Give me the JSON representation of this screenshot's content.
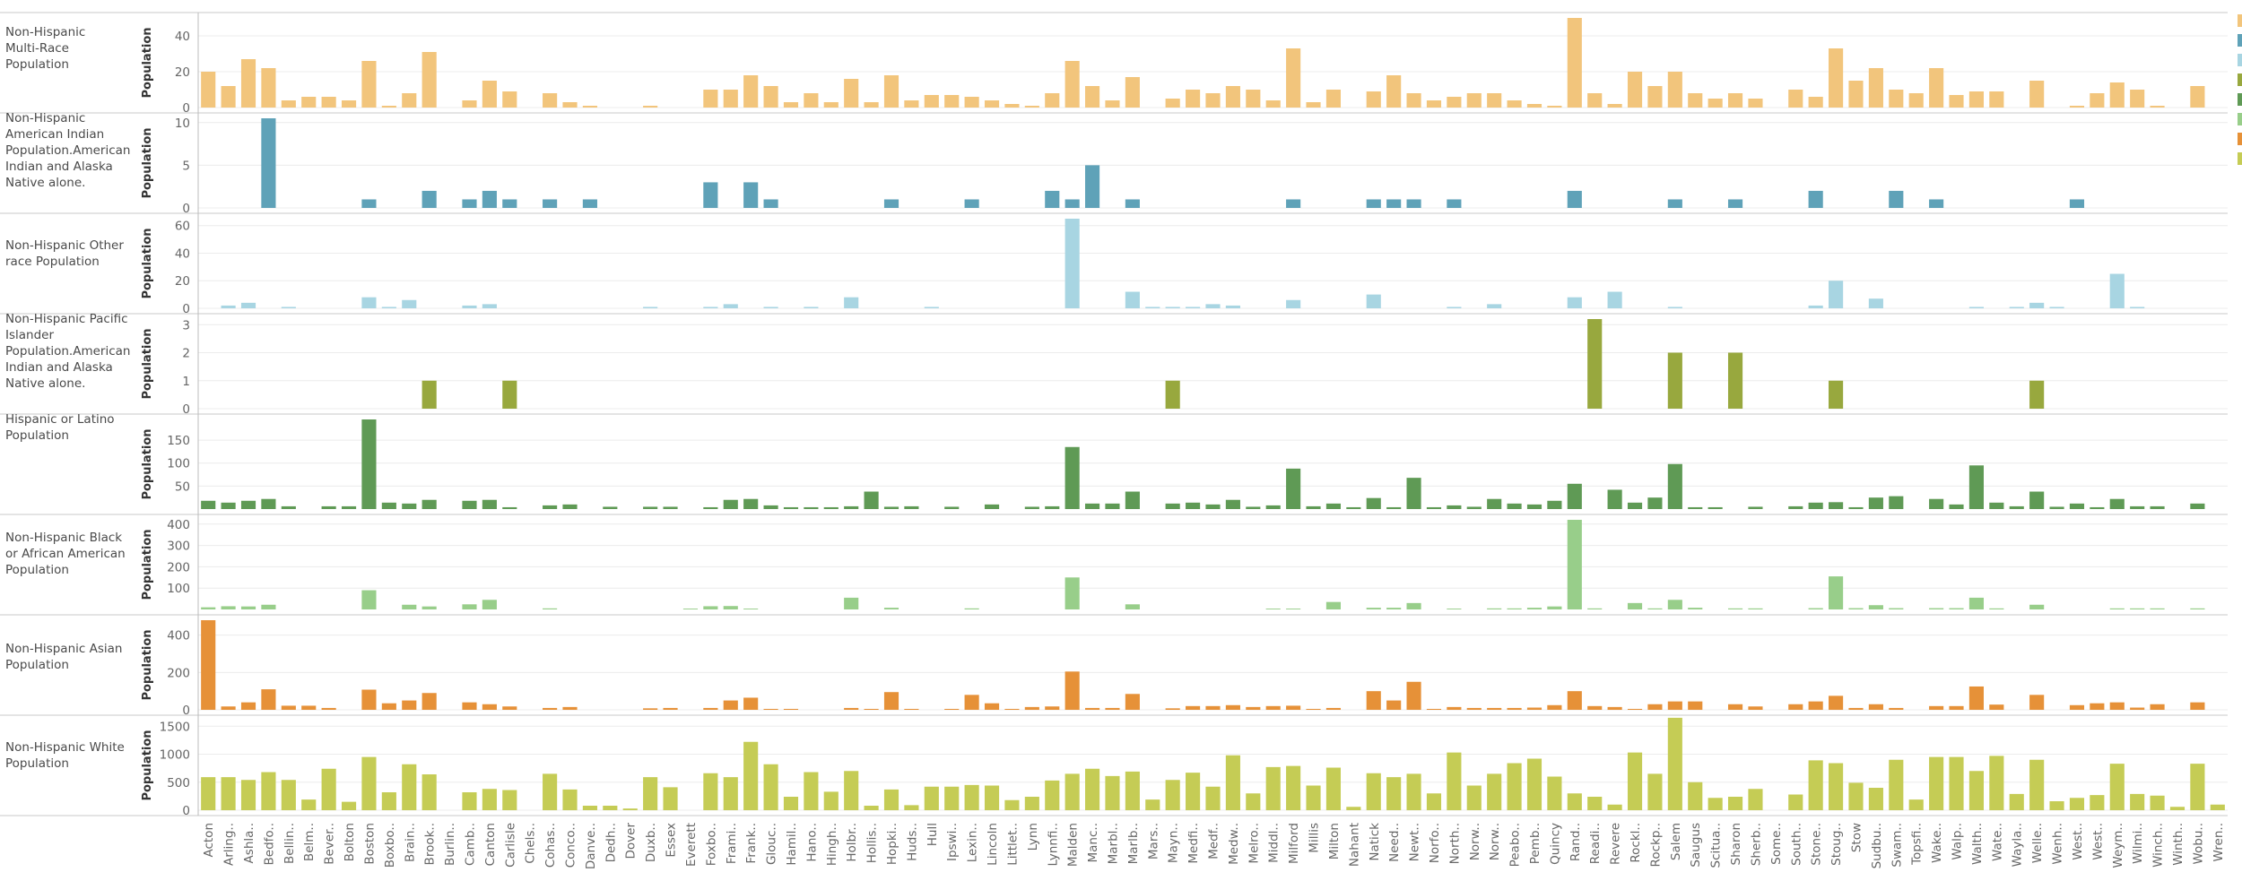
{
  "chart_data": {
    "type": "bar",
    "orientation": "vertical",
    "layout": "small-multiples",
    "y_axis_title": "Population",
    "categories": [
      "Acton",
      "Arling..",
      "Ashla..",
      "Bedfo..",
      "Bellin..",
      "Belm..",
      "Bever..",
      "Bolton",
      "Boston",
      "Boxbo..",
      "Brain..",
      "Brook..",
      "Burlin..",
      "Camb..",
      "Canton",
      "Carlisle",
      "Chels..",
      "Cohas..",
      "Conco..",
      "Danve..",
      "Dedh..",
      "Dover",
      "Duxb..",
      "Essex",
      "Everett",
      "Foxbo..",
      "Frami..",
      "Frank..",
      "Glouc..",
      "Hamil..",
      "Hano..",
      "Hingh..",
      "Holbr..",
      "Hollis..",
      "Hopki..",
      "Huds..",
      "Hull",
      "Ipswi..",
      "Lexin..",
      "Lincoln",
      "Littlet..",
      "Lynn",
      "Lynnfi..",
      "Malden",
      "Manc..",
      "Marbl..",
      "Marlb..",
      "Mars..",
      "Mayn..",
      "Medfi..",
      "Medf..",
      "Medw..",
      "Melro..",
      "Middl..",
      "Milford",
      "Millis",
      "Milton",
      "Nahant",
      "Natick",
      "Need..",
      "Newt..",
      "Norfo..",
      "North..",
      "Norw..",
      "Norw..",
      "Peabo..",
      "Pemb..",
      "Quincy",
      "Rand..",
      "Readi..",
      "Revere",
      "Rockl..",
      "Rockp..",
      "Salem",
      "Saugus",
      "Scitua..",
      "Sharon",
      "Sherb..",
      "Some..",
      "South..",
      "Stone..",
      "Stoug..",
      "Stow",
      "Sudbu..",
      "Swam..",
      "Topsfi..",
      "Wake..",
      "Walp..",
      "Walth..",
      "Wate..",
      "Wayla..",
      "Welle..",
      "Wenh..",
      "West..",
      "West..",
      "Weym..",
      "Wilmi..",
      "Winch..",
      "Winth..",
      "Wobu..",
      "Wren.."
    ],
    "series": [
      {
        "name": "Non-Hispanic Multi-Race Population",
        "color": "#f2c57c",
        "ylim": [
          0,
          50
        ],
        "ticks": [
          0,
          20,
          40
        ],
        "values": [
          20,
          12,
          27,
          22,
          4,
          6,
          6,
          4,
          26,
          1,
          8,
          31,
          0,
          4,
          15,
          9,
          0,
          8,
          3,
          1,
          0,
          0,
          1,
          0,
          0,
          10,
          10,
          18,
          12,
          3,
          8,
          3,
          16,
          3,
          18,
          4,
          7,
          7,
          6,
          4,
          2,
          1,
          8,
          26,
          12,
          4,
          17,
          0,
          5,
          10,
          8,
          12,
          10,
          4,
          33,
          3,
          10,
          0,
          9,
          18,
          8,
          4,
          6,
          8,
          8,
          4,
          2,
          1,
          50,
          8,
          2,
          20,
          12,
          20,
          8,
          5,
          8,
          5,
          0,
          10,
          6,
          33,
          15,
          22,
          10,
          8,
          22,
          7,
          9,
          9,
          0,
          15,
          0,
          1,
          8,
          14,
          10,
          1,
          0,
          12,
          0
        ]
      },
      {
        "name": "Non-Hispanic American Indian Population.American Indian and Alaska Native alone.",
        "color": "#5fa2b8",
        "ylim": [
          0,
          10.5
        ],
        "ticks": [
          0,
          5,
          10
        ],
        "values": [
          0,
          0,
          0,
          10.5,
          0,
          0,
          0,
          0,
          1,
          0,
          0,
          2,
          0,
          1,
          2,
          1,
          0,
          1,
          0,
          1,
          0,
          0,
          0,
          0,
          0,
          3,
          0,
          3,
          1,
          0,
          0,
          0,
          0,
          0,
          1,
          0,
          0,
          0,
          1,
          0,
          0,
          0,
          2,
          1,
          5,
          0,
          1,
          0,
          0,
          0,
          0,
          0,
          0,
          0,
          1,
          0,
          0,
          0,
          1,
          1,
          1,
          0,
          1,
          0,
          0,
          0,
          0,
          0,
          2,
          0,
          0,
          0,
          0,
          1,
          0,
          0,
          1,
          0,
          0,
          0,
          2,
          0,
          0,
          0,
          2,
          0,
          1,
          0,
          0,
          0,
          0,
          0,
          0,
          1,
          0,
          0,
          0,
          0,
          0,
          0,
          0
        ]
      },
      {
        "name": "Non-Hispanic Other race Population",
        "color": "#a8d5e2",
        "ylim": [
          0,
          65
        ],
        "ticks": [
          0,
          20,
          40,
          60
        ],
        "values": [
          0,
          2,
          4,
          0,
          1,
          0,
          0,
          0,
          8,
          1,
          6,
          0,
          0,
          2,
          3,
          0,
          0,
          0,
          0,
          0,
          0,
          0,
          1,
          0,
          0,
          1,
          3,
          0,
          1,
          0,
          1,
          0,
          8,
          0,
          0,
          0,
          1,
          0,
          0,
          0,
          0,
          0,
          0,
          65,
          0,
          0,
          12,
          1,
          1,
          1,
          3,
          2,
          0,
          0,
          6,
          0,
          0,
          0,
          10,
          0,
          0,
          0,
          1,
          0,
          3,
          0,
          0,
          0,
          8,
          0,
          12,
          0,
          0,
          1,
          0,
          0,
          0,
          0,
          0,
          0,
          2,
          20,
          0,
          7,
          0,
          0,
          0,
          0,
          1,
          0,
          1,
          4,
          1,
          0,
          0,
          25,
          1,
          0,
          0,
          0,
          0
        ]
      },
      {
        "name": "Non-Hispanic Pacific Islander Population.American Indian and Alaska Native alone.",
        "color": "#98a83e",
        "ylim": [
          0,
          3.2
        ],
        "ticks": [
          0,
          1,
          2,
          3
        ],
        "values": [
          0,
          0,
          0,
          0,
          0,
          0,
          0,
          0,
          0,
          0,
          0,
          1,
          0,
          0,
          0,
          1,
          0,
          0,
          0,
          0,
          0,
          0,
          0,
          0,
          0,
          0,
          0,
          0,
          0,
          0,
          0,
          0,
          0,
          0,
          0,
          0,
          0,
          0,
          0,
          0,
          0,
          0,
          0,
          0,
          0,
          0,
          0,
          0,
          1,
          0,
          0,
          0,
          0,
          0,
          0,
          0,
          0,
          0,
          0,
          0,
          0,
          0,
          0,
          0,
          0,
          0,
          0,
          0,
          0,
          3.2,
          0,
          0,
          0,
          2,
          0,
          0,
          2,
          0,
          0,
          0,
          0,
          1,
          0,
          0,
          0,
          0,
          0,
          0,
          0,
          0,
          0,
          1,
          0,
          0,
          0,
          0,
          0,
          0,
          0,
          0,
          0
        ]
      },
      {
        "name": "Hispanic or Latino Population",
        "color": "#5f9a55",
        "ylim": [
          0,
          195
        ],
        "ticks": [
          50,
          100,
          150
        ],
        "values": [
          18,
          14,
          18,
          22,
          6,
          0,
          6,
          6,
          195,
          14,
          12,
          20,
          0,
          18,
          20,
          4,
          0,
          8,
          10,
          0,
          5,
          0,
          5,
          5,
          0,
          4,
          20,
          22,
          8,
          4,
          4,
          4,
          6,
          38,
          5,
          6,
          0,
          5,
          0,
          10,
          0,
          5,
          6,
          135,
          12,
          12,
          38,
          0,
          12,
          14,
          10,
          20,
          5,
          8,
          88,
          6,
          12,
          4,
          24,
          4,
          68,
          4,
          8,
          5,
          22,
          12,
          10,
          18,
          55,
          0,
          42,
          14,
          25,
          98,
          4,
          4,
          0,
          5,
          0,
          6,
          14,
          15,
          4,
          25,
          28,
          0,
          22,
          10,
          95,
          14,
          6,
          38,
          5,
          12,
          4,
          22,
          6,
          6,
          0,
          12,
          0
        ]
      },
      {
        "name": "Non-Hispanic Black or African American Population",
        "color": "#98ce8a",
        "ylim": [
          0,
          420
        ],
        "ticks": [
          100,
          200,
          300,
          400
        ],
        "values": [
          10,
          15,
          14,
          22,
          0,
          0,
          0,
          0,
          90,
          0,
          22,
          14,
          0,
          24,
          45,
          0,
          0,
          5,
          0,
          0,
          0,
          0,
          0,
          0,
          4,
          15,
          16,
          4,
          0,
          0,
          0,
          0,
          55,
          0,
          8,
          0,
          0,
          0,
          5,
          0,
          0,
          0,
          0,
          150,
          0,
          0,
          24,
          0,
          0,
          0,
          0,
          0,
          0,
          4,
          4,
          0,
          35,
          0,
          8,
          8,
          30,
          0,
          4,
          0,
          5,
          5,
          8,
          14,
          420,
          5,
          0,
          30,
          5,
          45,
          8,
          0,
          5,
          5,
          0,
          0,
          6,
          155,
          6,
          20,
          6,
          0,
          6,
          6,
          55,
          5,
          0,
          22,
          0,
          0,
          0,
          5,
          5,
          5,
          0,
          5,
          0
        ]
      },
      {
        "name": "Non-Hispanic Asian Population",
        "color": "#e69138",
        "ylim": [
          0,
          480
        ],
        "ticks": [
          0,
          200,
          400
        ],
        "values": [
          480,
          18,
          40,
          110,
          22,
          22,
          10,
          0,
          108,
          35,
          50,
          90,
          0,
          40,
          30,
          18,
          0,
          10,
          15,
          0,
          0,
          0,
          8,
          10,
          0,
          10,
          50,
          65,
          5,
          5,
          0,
          0,
          10,
          5,
          95,
          5,
          0,
          5,
          80,
          35,
          5,
          15,
          18,
          205,
          10,
          10,
          85,
          0,
          8,
          20,
          20,
          25,
          15,
          20,
          22,
          5,
          10,
          0,
          100,
          50,
          150,
          5,
          15,
          10,
          10,
          10,
          12,
          25,
          100,
          20,
          15,
          5,
          30,
          45,
          45,
          0,
          30,
          18,
          0,
          30,
          45,
          75,
          10,
          30,
          10,
          0,
          20,
          20,
          125,
          28,
          0,
          80,
          0,
          25,
          35,
          40,
          12,
          30,
          0,
          40,
          0
        ]
      },
      {
        "name": "Non-Hispanic White Population",
        "color": "#c5cc55",
        "ylim": [
          0,
          1600
        ],
        "ticks": [
          0,
          500,
          1000,
          1500
        ],
        "values": [
          590,
          590,
          540,
          680,
          540,
          190,
          740,
          150,
          950,
          320,
          820,
          640,
          0,
          320,
          380,
          360,
          0,
          650,
          370,
          80,
          80,
          30,
          590,
          410,
          0,
          660,
          590,
          1220,
          820,
          240,
          680,
          330,
          700,
          80,
          370,
          90,
          420,
          420,
          450,
          440,
          180,
          240,
          530,
          650,
          740,
          610,
          690,
          190,
          540,
          670,
          420,
          980,
          300,
          770,
          790,
          440,
          760,
          60,
          660,
          590,
          650,
          300,
          1030,
          440,
          650,
          840,
          920,
          600,
          300,
          240,
          100,
          1030,
          650,
          1650,
          500,
          220,
          240,
          380,
          0,
          280,
          890,
          840,
          490,
          400,
          900,
          190,
          950,
          950,
          700,
          970,
          290,
          900,
          160,
          220,
          270,
          830,
          290,
          260,
          60,
          830,
          100
        ]
      }
    ]
  }
}
